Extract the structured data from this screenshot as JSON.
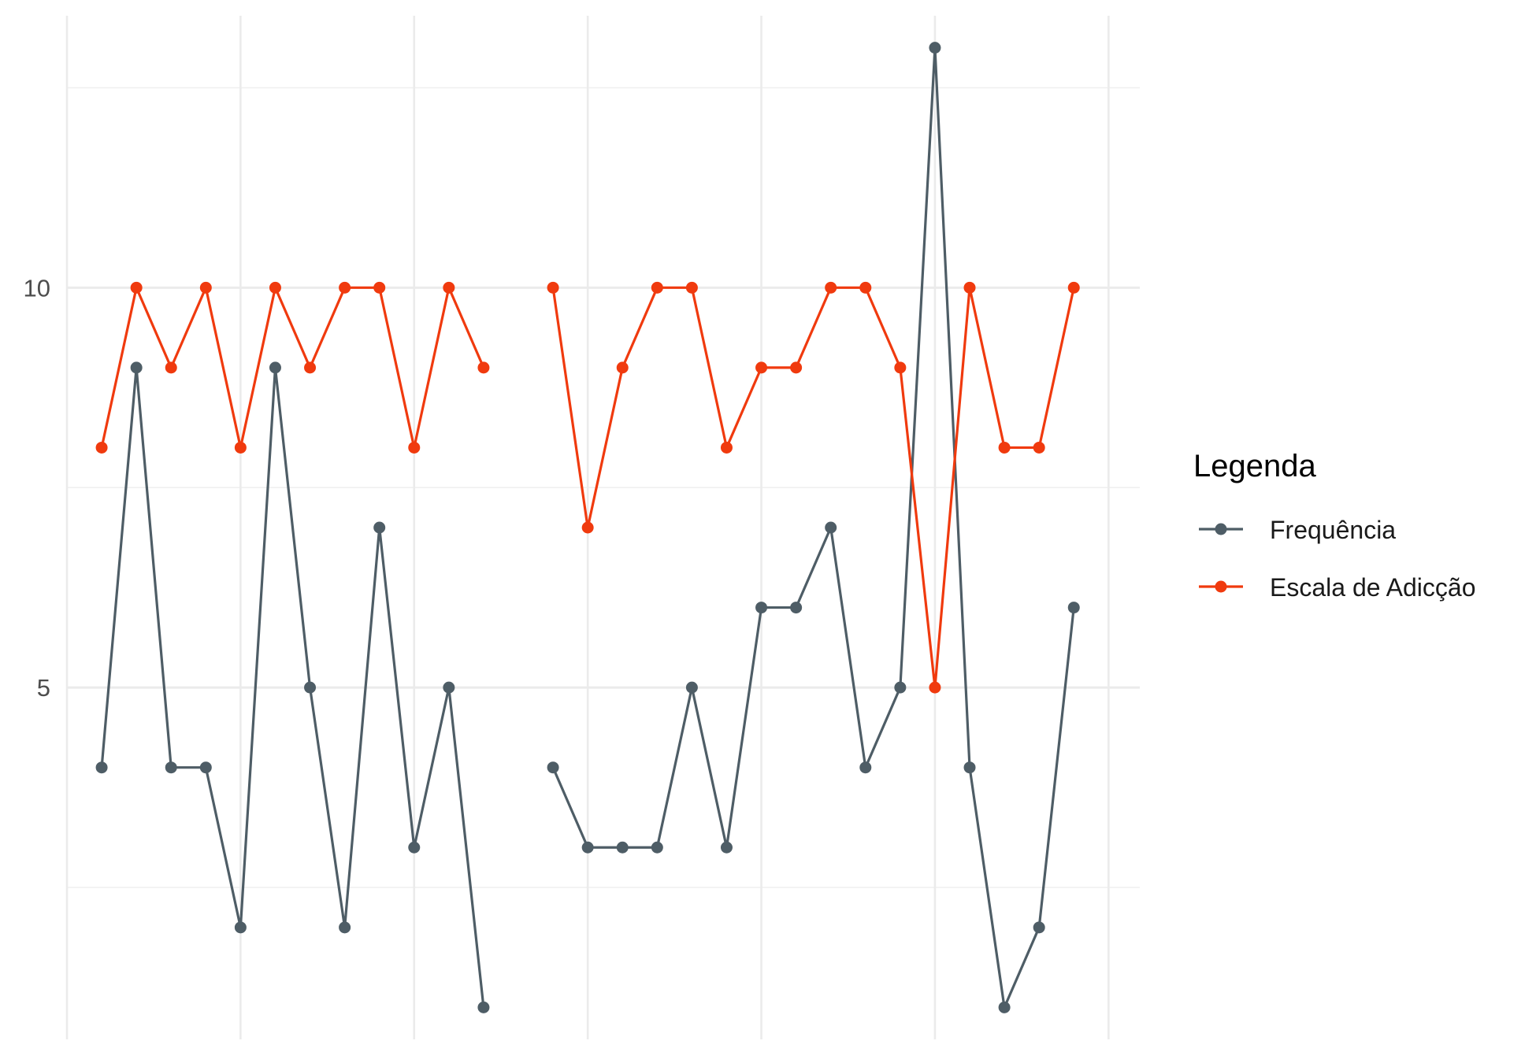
{
  "chart_data": {
    "type": "line",
    "title": "",
    "xlabel": "",
    "ylabel": "",
    "x": [
      1,
      2,
      3,
      4,
      5,
      6,
      7,
      8,
      9,
      10,
      11,
      12,
      13,
      14,
      15,
      16,
      17,
      18,
      19,
      20,
      21,
      22,
      23,
      24,
      25,
      26,
      27,
      28,
      29
    ],
    "xlim": [
      0,
      30.9
    ],
    "ylim": [
      0.6,
      13.4
    ],
    "y_major_ticks": [
      5,
      10
    ],
    "y_minor_ticks": [
      2.5,
      7.5,
      12.5
    ],
    "x_gridlines": [
      0,
      5,
      10,
      15,
      20,
      25,
      30
    ],
    "grid": true,
    "legend": {
      "title": "Legenda",
      "position": "right"
    },
    "series": [
      {
        "name": "Frequência",
        "color": "#4E5D66",
        "values": [
          4,
          9,
          4,
          4,
          2,
          9,
          5,
          2,
          7,
          3,
          5,
          1,
          null,
          4,
          3,
          3,
          3,
          5,
          3,
          6,
          6,
          7,
          4,
          5,
          13,
          4,
          1,
          2,
          6
        ]
      },
      {
        "name": "Escala de Adicção",
        "color": "#F03A0E",
        "values": [
          8,
          10,
          9,
          10,
          8,
          10,
          9,
          10,
          10,
          8,
          10,
          9,
          null,
          10,
          7,
          9,
          10,
          10,
          8,
          9,
          9,
          10,
          10,
          9,
          5,
          10,
          8,
          8,
          10
        ]
      }
    ]
  }
}
